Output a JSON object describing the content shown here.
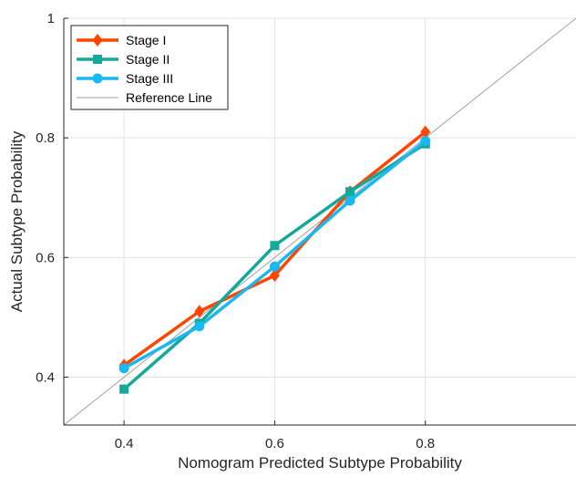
{
  "chart_data": {
    "type": "line",
    "xlabel": "Nomogram Predicted Subtype Probability",
    "ylabel": "Actual Subtype Probability",
    "xlim": [
      0.32,
      1.0
    ],
    "ylim": [
      0.32,
      1.0
    ],
    "x_ticks": [
      0.4,
      0.6,
      0.8
    ],
    "x_tick_labels": [
      "0.4",
      "0.6",
      "0.8"
    ],
    "y_ticks": [
      0.4,
      0.6,
      0.8,
      1.0
    ],
    "y_tick_labels": [
      "0.4",
      "0.6",
      "0.8",
      "1"
    ],
    "grid": true,
    "legend_position": "top-left",
    "series": [
      {
        "name": "Stage I",
        "color": "#FF4500",
        "marker": "diamond",
        "x": [
          0.4,
          0.5,
          0.6,
          0.7,
          0.8
        ],
        "y": [
          0.42,
          0.51,
          0.57,
          0.71,
          0.81
        ]
      },
      {
        "name": "Stage II",
        "color": "#16A89A",
        "marker": "square",
        "x": [
          0.4,
          0.5,
          0.6,
          0.7,
          0.8
        ],
        "y": [
          0.38,
          0.49,
          0.62,
          0.71,
          0.79
        ]
      },
      {
        "name": "Stage III",
        "color": "#1AB8F0",
        "marker": "circle",
        "x": [
          0.4,
          0.5,
          0.6,
          0.7,
          0.8
        ],
        "y": [
          0.415,
          0.485,
          0.585,
          0.695,
          0.795
        ]
      }
    ],
    "reference_line": {
      "name": "Reference Line",
      "color": "#A0A0A0",
      "x": [
        0.32,
        1.0
      ],
      "y": [
        0.32,
        1.0
      ]
    }
  }
}
